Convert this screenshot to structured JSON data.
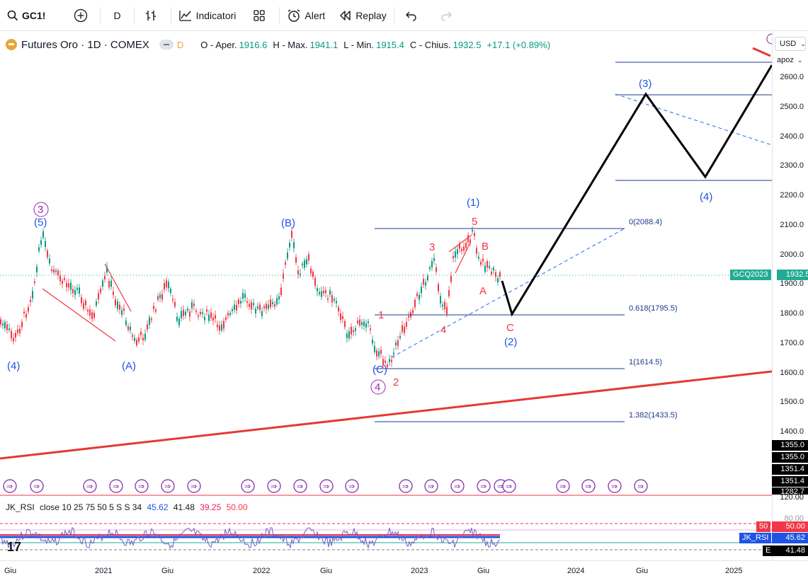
{
  "toolbar": {
    "symbol": "GC1!",
    "interval": "D",
    "indicators_label": "Indicatori",
    "alert_label": "Alert",
    "replay_label": "Replay"
  },
  "legend": {
    "title": "Futures Oro · 1D · COMEX",
    "d_label": "D",
    "o_label": "O - Aper.",
    "o_value": "1916.6",
    "h_label": "H - Max.",
    "h_value": "1941.1",
    "l_label": "L - Min.",
    "l_value": "1915.4",
    "c_label": "C - Chius.",
    "c_value": "1932.5",
    "change": "+17.1 (+0.89%)"
  },
  "price_axis": {
    "currency": "USD",
    "scale_mode": "apoz",
    "ticks": [
      "2600.0",
      "2500.0",
      "2400.0",
      "2300.0",
      "2200.0",
      "2100.0",
      "2000.0",
      "1900.0",
      "1800.0",
      "1700.0",
      "1600.0",
      "1500.0",
      "1400.0"
    ],
    "labels": [
      "1355.0",
      "1355.0",
      "1351.4",
      "1351.4",
      "1282.7"
    ],
    "last_symbol": "GCQ2023",
    "last_price": "1932.5",
    "bottom_value": "120.00"
  },
  "fib_levels": [
    "0(2088.4)",
    "0.618(1795.5)",
    "1(1614.5)",
    "1.382(1433.5)"
  ],
  "waves": {
    "w4_left": "(4)",
    "w5_circle3": "3",
    "w5": "(5)",
    "wA": "(A)",
    "wB": "(B)",
    "wC": "(C)",
    "w_circle4": "4",
    "w1": "(1)",
    "w2": "(2)",
    "w3": "(3)",
    "w4": "(4)",
    "r1": "1",
    "r2": "2",
    "r3": "3",
    "r4": "4",
    "r5": "5",
    "rA": "A",
    "rB": "B",
    "rC": "C"
  },
  "rsi": {
    "legend_name": "JK_RSI",
    "legend_params": "close 10 25 75 50 5 S S 34",
    "v1": "45.62",
    "v2": "41.48",
    "v3": "39.25",
    "v4": "50.00",
    "axis_80": "80.00",
    "tag_50": "50",
    "tag_50v": "50.00",
    "tag_name": "JK_RSI",
    "tag_val": "45.62",
    "tag_e": "E",
    "tag_e_val": "41.48"
  },
  "time_axis": [
    "Giu",
    "2021",
    "Giu",
    "2022",
    "Giu",
    "2023",
    "Giu",
    "2024",
    "Giu",
    "2025"
  ],
  "colors": {
    "up": "#089981",
    "down": "#f23645",
    "wave_blue": "#1e53e5",
    "wave_red": "#f23645",
    "wave_purple": "#9c27b0"
  }
}
